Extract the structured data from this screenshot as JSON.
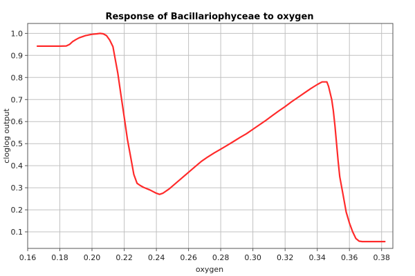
{
  "chart_data": {
    "type": "line",
    "title": "Response of Bacillariophyceae to oxygen",
    "xlabel": "oxygen",
    "ylabel": "cloglog output",
    "xlim": [
      0.16,
      0.387
    ],
    "ylim": [
      0.025,
      1.045
    ],
    "x_ticks": [
      0.16,
      0.18,
      0.2,
      0.22,
      0.24,
      0.26,
      0.28,
      0.3,
      0.32,
      0.34,
      0.36,
      0.38
    ],
    "x_tick_labels": [
      "0.16",
      "0.18",
      "0.20",
      "0.22",
      "0.24",
      "0.26",
      "0.28",
      "0.30",
      "0.32",
      "0.34",
      "0.36",
      "0.38"
    ],
    "y_ticks": [
      0.1,
      0.2,
      0.3,
      0.4,
      0.5,
      0.6,
      0.7,
      0.8,
      0.9,
      1.0
    ],
    "y_tick_labels": [
      "0.1",
      "0.2",
      "0.3",
      "0.4",
      "0.5",
      "0.6",
      "0.7",
      "0.8",
      "0.9",
      "1.0"
    ],
    "grid": true,
    "line_color": "#ff2a2a",
    "series": [
      {
        "name": "",
        "points": [
          [
            0.166,
            0.942
          ],
          [
            0.17,
            0.942
          ],
          [
            0.175,
            0.942
          ],
          [
            0.18,
            0.942
          ],
          [
            0.184,
            0.943
          ],
          [
            0.186,
            0.95
          ],
          [
            0.188,
            0.963
          ],
          [
            0.19,
            0.972
          ],
          [
            0.192,
            0.98
          ],
          [
            0.196,
            0.99
          ],
          [
            0.2,
            0.996
          ],
          [
            0.203,
            0.998
          ],
          [
            0.205,
            1.0
          ],
          [
            0.207,
            0.998
          ],
          [
            0.209,
            0.99
          ],
          [
            0.211,
            0.97
          ],
          [
            0.213,
            0.94
          ],
          [
            0.214,
            0.9
          ],
          [
            0.216,
            0.82
          ],
          [
            0.218,
            0.72
          ],
          [
            0.22,
            0.62
          ],
          [
            0.222,
            0.52
          ],
          [
            0.224,
            0.44
          ],
          [
            0.226,
            0.36
          ],
          [
            0.228,
            0.32
          ],
          [
            0.23,
            0.31
          ],
          [
            0.232,
            0.302
          ],
          [
            0.236,
            0.29
          ],
          [
            0.24,
            0.275
          ],
          [
            0.242,
            0.27
          ],
          [
            0.244,
            0.275
          ],
          [
            0.248,
            0.295
          ],
          [
            0.252,
            0.32
          ],
          [
            0.256,
            0.345
          ],
          [
            0.26,
            0.37
          ],
          [
            0.264,
            0.395
          ],
          [
            0.268,
            0.42
          ],
          [
            0.272,
            0.44
          ],
          [
            0.276,
            0.458
          ],
          [
            0.28,
            0.475
          ],
          [
            0.284,
            0.492
          ],
          [
            0.288,
            0.51
          ],
          [
            0.292,
            0.528
          ],
          [
            0.296,
            0.545
          ],
          [
            0.3,
            0.565
          ],
          [
            0.304,
            0.585
          ],
          [
            0.308,
            0.605
          ],
          [
            0.312,
            0.627
          ],
          [
            0.316,
            0.648
          ],
          [
            0.32,
            0.668
          ],
          [
            0.324,
            0.69
          ],
          [
            0.328,
            0.71
          ],
          [
            0.332,
            0.73
          ],
          [
            0.336,
            0.75
          ],
          [
            0.34,
            0.768
          ],
          [
            0.343,
            0.78
          ],
          [
            0.346,
            0.78
          ],
          [
            0.347,
            0.76
          ],
          [
            0.349,
            0.7
          ],
          [
            0.35,
            0.65
          ],
          [
            0.351,
            0.58
          ],
          [
            0.352,
            0.5
          ],
          [
            0.353,
            0.42
          ],
          [
            0.354,
            0.35
          ],
          [
            0.356,
            0.27
          ],
          [
            0.358,
            0.19
          ],
          [
            0.36,
            0.14
          ],
          [
            0.362,
            0.1
          ],
          [
            0.364,
            0.07
          ],
          [
            0.366,
            0.058
          ],
          [
            0.368,
            0.056
          ],
          [
            0.372,
            0.056
          ],
          [
            0.376,
            0.056
          ],
          [
            0.38,
            0.056
          ],
          [
            0.382,
            0.056
          ]
        ]
      }
    ]
  }
}
